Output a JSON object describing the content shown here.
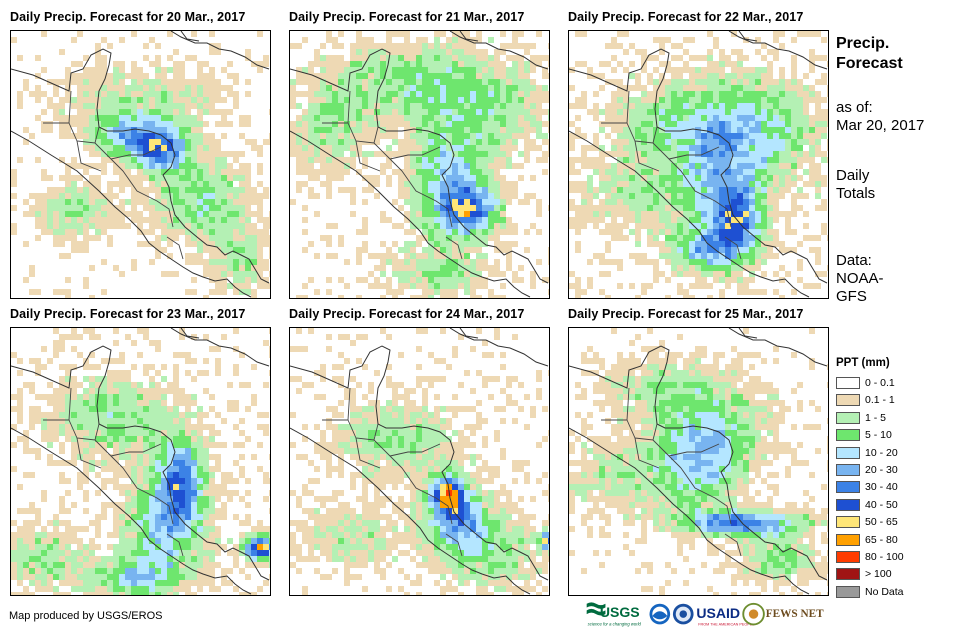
{
  "panels": [
    {
      "title": "Daily Precip. Forecast for 20 Mar., 2017"
    },
    {
      "title": "Daily Precip. Forecast for 21 Mar., 2017"
    },
    {
      "title": "Daily Precip. Forecast for 22 Mar., 2017"
    },
    {
      "title": "Daily Precip. Forecast for 23 Mar., 2017"
    },
    {
      "title": "Daily Precip. Forecast for 24 Mar., 2017"
    },
    {
      "title": "Daily Precip. Forecast for 25 Mar., 2017"
    }
  ],
  "side": {
    "title_line1": "Precip.",
    "title_line2": "Forecast",
    "asof_line1": "as of:",
    "asof_line2": "Mar 20, 2017",
    "totals_line1": "Daily",
    "totals_line2": "Totals",
    "data_line1": "Data:",
    "data_line2": "NOAA-",
    "data_line3": "GFS"
  },
  "legend": {
    "title": "PPT (mm)",
    "items": [
      {
        "label": "0 - 0.1",
        "color": "#ffffff"
      },
      {
        "label": "0.1 - 1",
        "color": "#eed9b4"
      },
      {
        "label": "1 - 5",
        "color": "#b4f0b4"
      },
      {
        "label": "5 - 10",
        "color": "#6ee66e"
      },
      {
        "label": "10 - 20",
        "color": "#b4e6ff"
      },
      {
        "label": "20 - 30",
        "color": "#78b4f0"
      },
      {
        "label": "30 - 40",
        "color": "#3c82e6"
      },
      {
        "label": "40 - 50",
        "color": "#1e50d2"
      },
      {
        "label": "50 - 65",
        "color": "#ffe678"
      },
      {
        "label": "65 - 80",
        "color": "#ffa000"
      },
      {
        "label": "80 - 100",
        "color": "#ff3c00"
      },
      {
        "label": "> 100",
        "color": "#a01414"
      },
      {
        "label": "No Data",
        "color": "#999999"
      }
    ]
  },
  "credit": "Map produced by USGS/EROS",
  "logos": {
    "usgs": "USGS",
    "usgs_tagline": "science for a changing world",
    "usaid": "USAID",
    "usaid_tagline": "FROM THE AMERICAN PEOPLE",
    "fewsnet": "FEWS NET"
  }
}
